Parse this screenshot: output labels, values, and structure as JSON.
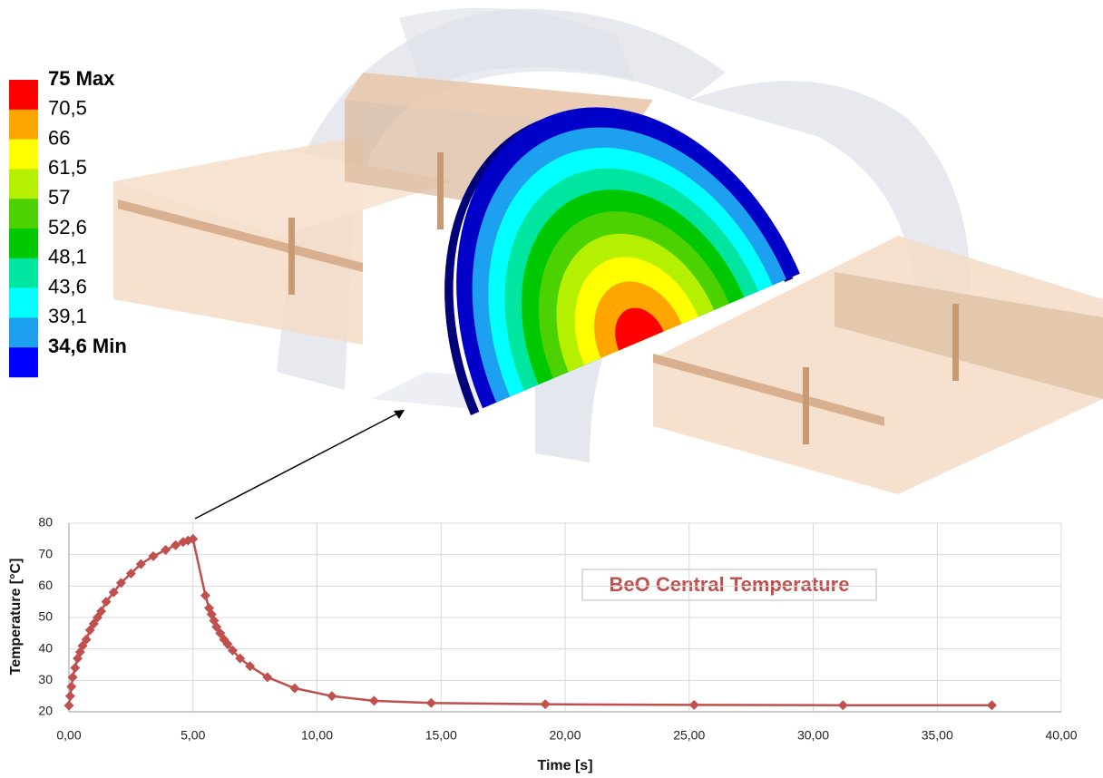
{
  "contour_legend": {
    "labels": [
      "75 Max",
      "70,5",
      "66",
      "61,5",
      "57",
      "52,6",
      "48,1",
      "43,6",
      "39,1",
      "34,6 Min"
    ],
    "colors": [
      "#ff0000",
      "#ffa500",
      "#ffff00",
      "#b4f000",
      "#4cd200",
      "#00c800",
      "#00e6a0",
      "#00ffff",
      "#1ea0f0",
      "#0000ff"
    ]
  },
  "chart_data": {
    "type": "line",
    "annotation": "BeO Central Temperature",
    "xlabel": "Time [s]",
    "ylabel": "Temperature [°C]",
    "xlim": [
      0,
      40
    ],
    "ylim": [
      20,
      80
    ],
    "grid": true,
    "xticks": [
      {
        "value": 0,
        "label": "0,00"
      },
      {
        "value": 5,
        "label": "5,00"
      },
      {
        "value": 10,
        "label": "10,00"
      },
      {
        "value": 15,
        "label": "15,00"
      },
      {
        "value": 20,
        "label": "20,00"
      },
      {
        "value": 25,
        "label": "25,00"
      },
      {
        "value": 30,
        "label": "30,00"
      },
      {
        "value": 35,
        "label": "35,00"
      },
      {
        "value": 40,
        "label": "40,00"
      }
    ],
    "yticks": [
      20,
      30,
      40,
      50,
      60,
      70,
      80
    ],
    "series": [
      {
        "name": "BeO Central Temperature",
        "color": "#c0504d",
        "x": [
          0,
          0.05,
          0.1,
          0.15,
          0.25,
          0.35,
          0.45,
          0.55,
          0.7,
          0.85,
          1.0,
          1.15,
          1.3,
          1.5,
          1.8,
          2.1,
          2.5,
          2.9,
          3.4,
          3.9,
          4.3,
          4.6,
          4.8,
          5.0,
          5.5,
          5.65,
          5.75,
          5.85,
          5.95,
          6.1,
          6.25,
          6.4,
          6.6,
          6.9,
          7.3,
          8.0,
          9.1,
          10.6,
          12.3,
          14.6,
          19.2,
          25.2,
          31.2,
          37.2
        ],
        "values": [
          22,
          25,
          28,
          31,
          34,
          37,
          39,
          41,
          43,
          46,
          48,
          50,
          52,
          55,
          58,
          61,
          64,
          67,
          69.5,
          71.5,
          73,
          74,
          74.5,
          75,
          57,
          53,
          51,
          49,
          47,
          45,
          43,
          41.5,
          39.5,
          37,
          34.5,
          31,
          27.5,
          25,
          23.5,
          22.8,
          22.4,
          22.2,
          22.1,
          22.1
        ]
      }
    ]
  }
}
